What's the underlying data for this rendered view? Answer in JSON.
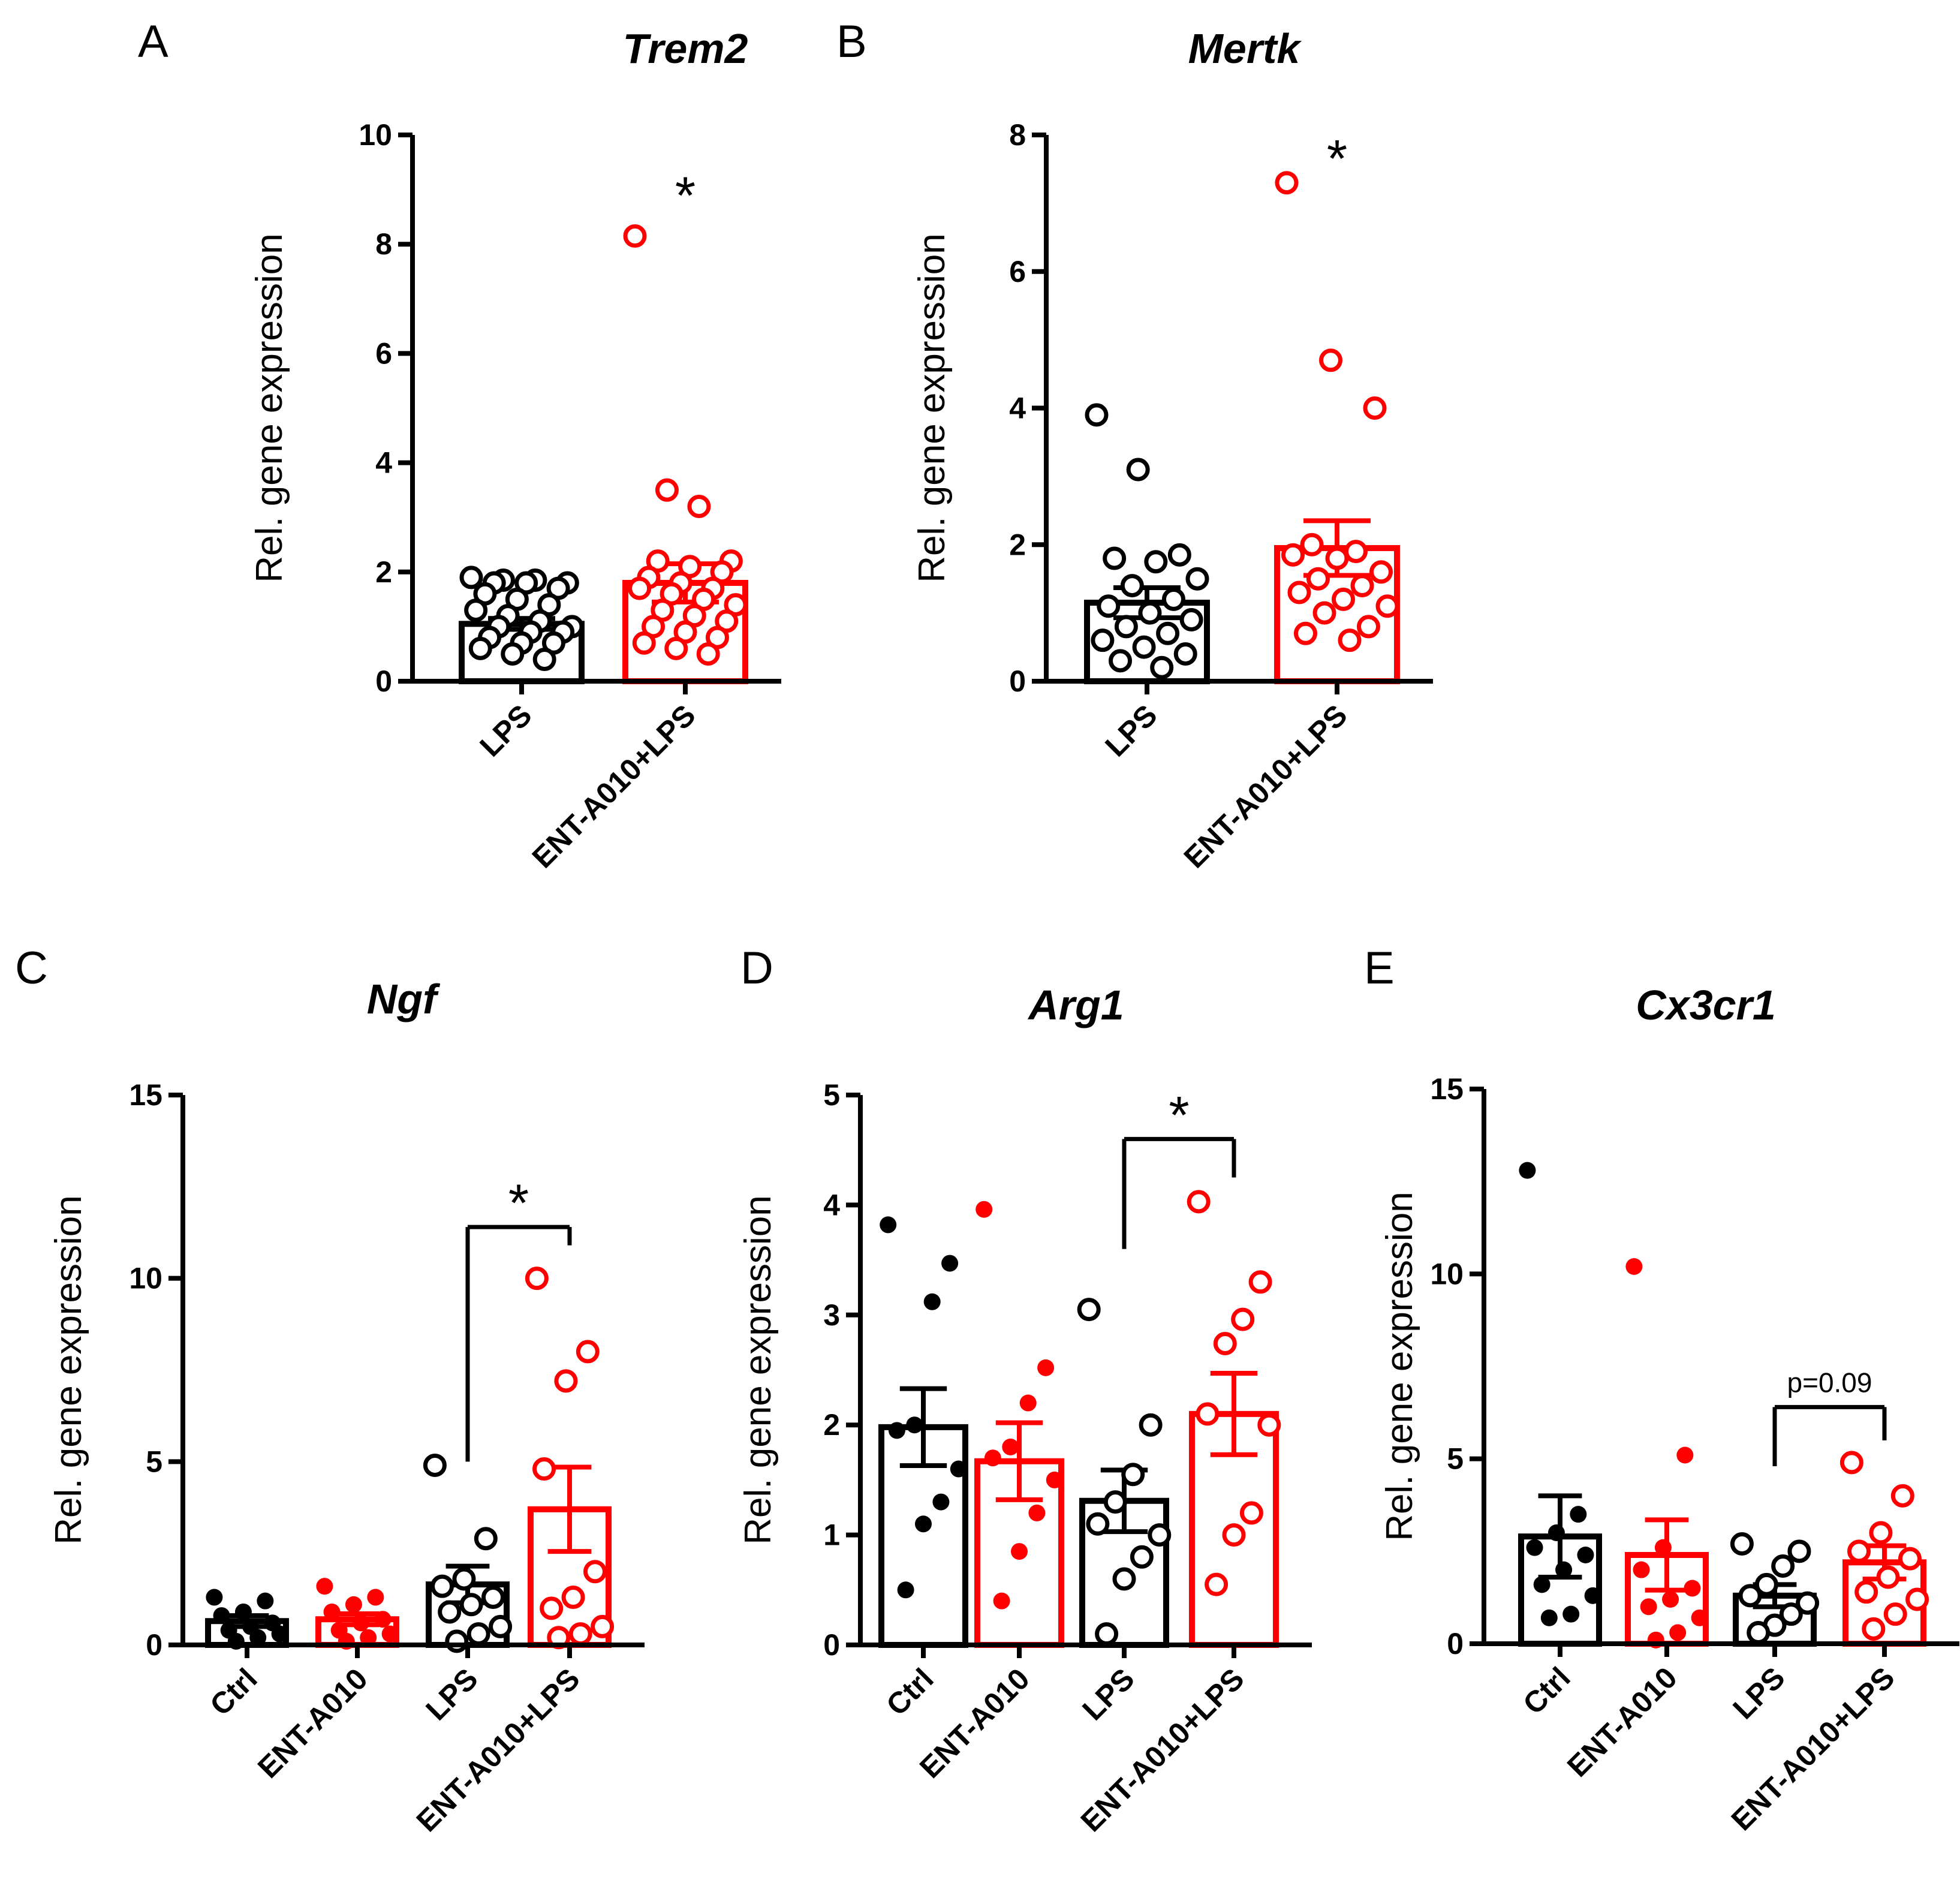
{
  "chart_data": [
    {
      "panel": "A",
      "type": "bar",
      "title": "Trem2",
      "xlabel": "",
      "ylabel": "Rel. gene expression",
      "ylim": [
        0,
        10
      ],
      "yticks": [
        0,
        2,
        4,
        6,
        8,
        10
      ],
      "categories": [
        "LPS",
        "ENT-A010+LPS"
      ],
      "colors": [
        "#000000",
        "#ff0000"
      ],
      "marker": [
        "open",
        "open"
      ],
      "values": [
        1.05,
        1.8
      ],
      "sem": [
        0.1,
        0.35
      ],
      "points": [
        [
          1.9,
          1.85,
          1.85,
          1.8,
          1.8,
          1.8,
          1.7,
          1.6,
          1.5,
          1.4,
          1.3,
          1.2,
          1.1,
          1.0,
          1.0,
          0.9,
          0.9,
          0.8,
          0.7,
          0.7,
          0.6,
          0.5,
          0.4
        ],
        [
          8.15,
          3.5,
          3.2,
          2.2,
          2.2,
          2.1,
          2.0,
          1.9,
          1.8,
          1.7,
          1.7,
          1.6,
          1.5,
          1.4,
          1.3,
          1.2,
          1.1,
          1.0,
          0.9,
          0.8,
          0.7,
          0.6,
          0.5
        ]
      ],
      "significance": [
        {
          "label": "*",
          "over": "ENT-A010+LPS",
          "y": 9.2
        }
      ]
    },
    {
      "panel": "B",
      "type": "bar",
      "title": "Mertk",
      "xlabel": "",
      "ylabel": "Rel. gene expression",
      "ylim": [
        0,
        8
      ],
      "yticks": [
        0,
        2,
        4,
        6,
        8
      ],
      "categories": [
        "LPS",
        "ENT-A010+LPS"
      ],
      "colors": [
        "#000000",
        "#ff0000"
      ],
      "marker": [
        "open",
        "open"
      ],
      "values": [
        1.15,
        1.95
      ],
      "sem": [
        0.22,
        0.4
      ],
      "points": [
        [
          3.9,
          3.1,
          1.85,
          1.8,
          1.75,
          1.5,
          1.4,
          1.2,
          1.1,
          1.0,
          0.9,
          0.8,
          0.7,
          0.6,
          0.5,
          0.4,
          0.3,
          0.2
        ],
        [
          7.3,
          4.7,
          4.0,
          2.0,
          1.9,
          1.85,
          1.8,
          1.6,
          1.5,
          1.4,
          1.3,
          1.2,
          1.1,
          1.0,
          0.8,
          0.7,
          0.6
        ]
      ],
      "significance": [
        {
          "label": "*",
          "over": "ENT-A010+LPS",
          "y": 7.9
        }
      ]
    },
    {
      "panel": "C",
      "type": "bar",
      "title": "Ngf",
      "xlabel": "",
      "ylabel": "Rel. gene expression",
      "ylim": [
        0,
        15
      ],
      "yticks": [
        0,
        5,
        10,
        15
      ],
      "categories": [
        "Ctrl",
        "ENT-A010",
        "LPS",
        "ENT-A010+LPS"
      ],
      "colors": [
        "#000000",
        "#ff0000",
        "#000000",
        "#ff0000"
      ],
      "marker": [
        "filled",
        "filled",
        "open",
        "open"
      ],
      "values": [
        0.65,
        0.7,
        1.65,
        3.7
      ],
      "sem": [
        0.15,
        0.15,
        0.5,
        1.15
      ],
      "points": [
        [
          1.3,
          1.2,
          0.9,
          0.8,
          0.6,
          0.5,
          0.4,
          0.3,
          0.2,
          0.1
        ],
        [
          1.6,
          1.3,
          1.1,
          0.9,
          0.7,
          0.6,
          0.4,
          0.3,
          0.2,
          0.1
        ],
        [
          4.9,
          2.9,
          1.8,
          1.6,
          1.3,
          1.1,
          0.9,
          0.5,
          0.3,
          0.1
        ],
        [
          10.0,
          8.0,
          7.2,
          4.8,
          2.0,
          1.3,
          1.0,
          0.5,
          0.3,
          0.2
        ]
      ],
      "significance": [
        {
          "label": "*",
          "from": "LPS",
          "to": "ENT-A010+LPS",
          "y": 11.4,
          "left_drop": 5.0,
          "right_drop": 10.9
        }
      ]
    },
    {
      "panel": "D",
      "type": "bar",
      "title": "Arg1",
      "xlabel": "",
      "ylabel": "Rel. gene expression",
      "ylim": [
        0,
        5
      ],
      "yticks": [
        0,
        1,
        2,
        3,
        4,
        5
      ],
      "categories": [
        "Ctrl",
        "ENT-A010",
        "LPS",
        "ENT-A010+LPS"
      ],
      "colors": [
        "#000000",
        "#ff0000",
        "#000000",
        "#ff0000"
      ],
      "marker": [
        "filled",
        "filled",
        "open",
        "open"
      ],
      "values": [
        1.98,
        1.67,
        1.31,
        2.1
      ],
      "sem": [
        0.35,
        0.35,
        0.28,
        0.37
      ],
      "points": [
        [
          3.82,
          3.47,
          3.12,
          2.0,
          1.95,
          1.6,
          1.3,
          1.1,
          0.5
        ],
        [
          3.96,
          2.52,
          2.2,
          1.8,
          1.7,
          1.5,
          1.2,
          0.85,
          0.4
        ],
        [
          3.05,
          2.0,
          1.55,
          1.3,
          1.1,
          1.0,
          0.8,
          0.6,
          0.1
        ],
        [
          4.03,
          3.3,
          2.96,
          2.74,
          2.1,
          2.0,
          1.2,
          1.0,
          0.55
        ]
      ],
      "significance": [
        {
          "label": "*",
          "from": "LPS",
          "to": "ENT-A010+LPS",
          "y": 4.6,
          "left_drop": 3.6,
          "right_drop": 4.25
        }
      ]
    },
    {
      "panel": "E",
      "type": "bar",
      "title": "Cx3cr1",
      "xlabel": "",
      "ylabel": "Rel. gene expression",
      "ylim": [
        0,
        15
      ],
      "yticks": [
        0,
        5,
        10,
        15
      ],
      "categories": [
        "Ctrl",
        "ENT-A010",
        "LPS",
        "ENT-A010+LPS"
      ],
      "colors": [
        "#000000",
        "#ff0000",
        "#000000",
        "#ff0000"
      ],
      "marker": [
        "filled",
        "filled",
        "open",
        "open"
      ],
      "values": [
        2.9,
        2.4,
        1.3,
        2.2
      ],
      "sem": [
        1.1,
        0.95,
        0.3,
        0.45
      ],
      "points": [
        [
          12.8,
          3.5,
          3.0,
          2.6,
          2.4,
          2.0,
          1.6,
          1.3,
          0.8,
          0.7
        ],
        [
          10.2,
          5.1,
          2.6,
          2.0,
          1.5,
          1.2,
          1.0,
          0.7,
          0.3,
          0.1
        ],
        [
          2.7,
          2.5,
          2.1,
          1.6,
          1.3,
          1.1,
          0.8,
          0.5,
          0.3
        ],
        [
          4.9,
          4.0,
          3.0,
          2.5,
          2.3,
          1.8,
          1.4,
          1.2,
          0.8,
          0.4
        ]
      ],
      "significance": [
        {
          "label": "p=0.09",
          "from": "LPS",
          "to": "ENT-A010+LPS",
          "y": 6.4,
          "left_drop": 4.8,
          "right_drop": 5.5
        }
      ]
    }
  ]
}
